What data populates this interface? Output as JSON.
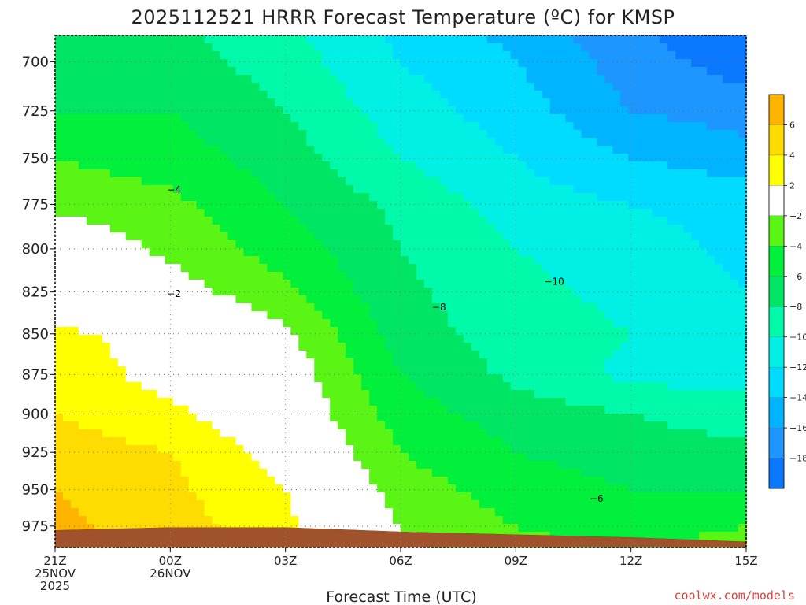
{
  "chart_data": {
    "type": "heatmap",
    "title": "2025112521 HRRR Forecast Temperature (ºC) for KMSP",
    "xlabel": "Forecast Time (UTC)",
    "ylabel": "",
    "x_ticks": [
      {
        "hour": 0,
        "lines": [
          "21Z",
          "25NOV",
          "2025"
        ]
      },
      {
        "hour": 3,
        "lines": [
          "00Z",
          "26NOV"
        ]
      },
      {
        "hour": 6,
        "lines": [
          "03Z"
        ]
      },
      {
        "hour": 9,
        "lines": [
          "06Z"
        ]
      },
      {
        "hour": 12,
        "lines": [
          "09Z"
        ]
      },
      {
        "hour": 15,
        "lines": [
          "12Z"
        ]
      },
      {
        "hour": 18,
        "lines": [
          "15Z"
        ]
      }
    ],
    "xlim_hours": [
      0,
      18
    ],
    "y_ticks": [
      700,
      725,
      750,
      775,
      800,
      825,
      850,
      875,
      900,
      925,
      950,
      975
    ],
    "ylim_hpa": [
      687,
      990
    ],
    "y_scale": "pressure (log-like, increasing downward)",
    "grid": true,
    "units": "ºC",
    "color_levels": [
      {
        "min": -20,
        "max": -18,
        "color": "#0a78ff"
      },
      {
        "min": -18,
        "max": -16,
        "color": "#1e96ff"
      },
      {
        "min": -16,
        "max": -14,
        "color": "#00b4ff"
      },
      {
        "min": -14,
        "max": -12,
        "color": "#00dcff"
      },
      {
        "min": -12,
        "max": -10,
        "color": "#00f0e6"
      },
      {
        "min": -10,
        "max": -8,
        "color": "#00faaa"
      },
      {
        "min": -8,
        "max": -6,
        "color": "#00e664"
      },
      {
        "min": -6,
        "max": -4,
        "color": "#00f03c"
      },
      {
        "min": -4,
        "max": -2,
        "color": "#5af514"
      },
      {
        "min": -2,
        "max": 2,
        "color": "#ffffff"
      },
      {
        "min": 2,
        "max": 4,
        "color": "#ffff00"
      },
      {
        "min": 4,
        "max": 6,
        "color": "#ffdc00"
      },
      {
        "min": 6,
        "max": 8,
        "color": "#ffb400"
      }
    ],
    "colorbar_labels": [
      "6",
      "4",
      "2",
      "−2",
      "−4",
      "−6",
      "−8",
      "−10",
      "−12",
      "−14",
      "−16",
      "−18"
    ],
    "contour_labels": [
      {
        "text": "−4",
        "hour": 3.1,
        "p": 767
      },
      {
        "text": "−2",
        "hour": 3.1,
        "p": 826
      },
      {
        "text": "−8",
        "hour": 10.0,
        "p": 834
      },
      {
        "text": "−10",
        "hour": 13.0,
        "p": 819
      },
      {
        "text": "−6",
        "hour": 14.1,
        "p": 956
      }
    ],
    "surface_pressure_hpa": [
      [
        0,
        978
      ],
      [
        3,
        976
      ],
      [
        6,
        976
      ],
      [
        9,
        979
      ],
      [
        12,
        981
      ],
      [
        15,
        983
      ],
      [
        18,
        986
      ]
    ],
    "temperature_profiles": [
      {
        "hour": 0,
        "points": [
          [
            700,
            -7
          ],
          [
            725,
            -6
          ],
          [
            750,
            -4
          ],
          [
            775,
            -2.5
          ],
          [
            800,
            0
          ],
          [
            825,
            0.5
          ],
          [
            850,
            2.5
          ],
          [
            875,
            3.5
          ],
          [
            900,
            4
          ],
          [
            925,
            5
          ],
          [
            950,
            6
          ],
          [
            975,
            6.5
          ]
        ]
      },
      {
        "hour": 3,
        "points": [
          [
            700,
            -7
          ],
          [
            725,
            -6
          ],
          [
            750,
            -5
          ],
          [
            775,
            -3.5
          ],
          [
            800,
            -2.5
          ],
          [
            825,
            -1
          ],
          [
            850,
            1
          ],
          [
            875,
            1
          ],
          [
            900,
            2.5
          ],
          [
            925,
            4
          ],
          [
            950,
            4.5
          ],
          [
            975,
            5
          ]
        ]
      },
      {
        "hour": 6,
        "points": [
          [
            700,
            -9
          ],
          [
            725,
            -8
          ],
          [
            750,
            -7
          ],
          [
            775,
            -6
          ],
          [
            800,
            -5
          ],
          [
            825,
            -3.5
          ],
          [
            850,
            -1.5
          ],
          [
            875,
            -0.5
          ],
          [
            900,
            0
          ],
          [
            925,
            1
          ],
          [
            950,
            2
          ],
          [
            975,
            2.5
          ]
        ]
      },
      {
        "hour": 9,
        "points": [
          [
            700,
            -12
          ],
          [
            725,
            -11
          ],
          [
            750,
            -10
          ],
          [
            775,
            -8.5
          ],
          [
            800,
            -8
          ],
          [
            825,
            -7.5
          ],
          [
            850,
            -7
          ],
          [
            875,
            -6
          ],
          [
            900,
            -5
          ],
          [
            925,
            -4
          ],
          [
            950,
            -3
          ],
          [
            975,
            -2
          ]
        ]
      },
      {
        "hour": 12,
        "points": [
          [
            700,
            -14
          ],
          [
            725,
            -13
          ],
          [
            750,
            -12
          ],
          [
            775,
            -11
          ],
          [
            800,
            -10
          ],
          [
            825,
            -9.5
          ],
          [
            850,
            -9
          ],
          [
            875,
            -8.5
          ],
          [
            900,
            -7
          ],
          [
            925,
            -6
          ],
          [
            950,
            -5
          ],
          [
            975,
            -4
          ]
        ]
      },
      {
        "hour": 15,
        "points": [
          [
            700,
            -17
          ],
          [
            725,
            -16
          ],
          [
            750,
            -14
          ],
          [
            775,
            -12
          ],
          [
            800,
            -11
          ],
          [
            825,
            -10.5
          ],
          [
            850,
            -10
          ],
          [
            875,
            -10.5
          ],
          [
            900,
            -8
          ],
          [
            925,
            -7
          ],
          [
            950,
            -6
          ],
          [
            975,
            -5
          ]
        ]
      },
      {
        "hour": 18,
        "points": [
          [
            700,
            -19
          ],
          [
            725,
            -17
          ],
          [
            750,
            -15
          ],
          [
            775,
            -13
          ],
          [
            800,
            -12.5
          ],
          [
            825,
            -12
          ],
          [
            850,
            -12
          ],
          [
            875,
            -11
          ],
          [
            900,
            -9
          ],
          [
            925,
            -7.5
          ],
          [
            950,
            -6
          ],
          [
            975,
            -4
          ]
        ]
      }
    ]
  },
  "credit": "coolwx.com/models"
}
